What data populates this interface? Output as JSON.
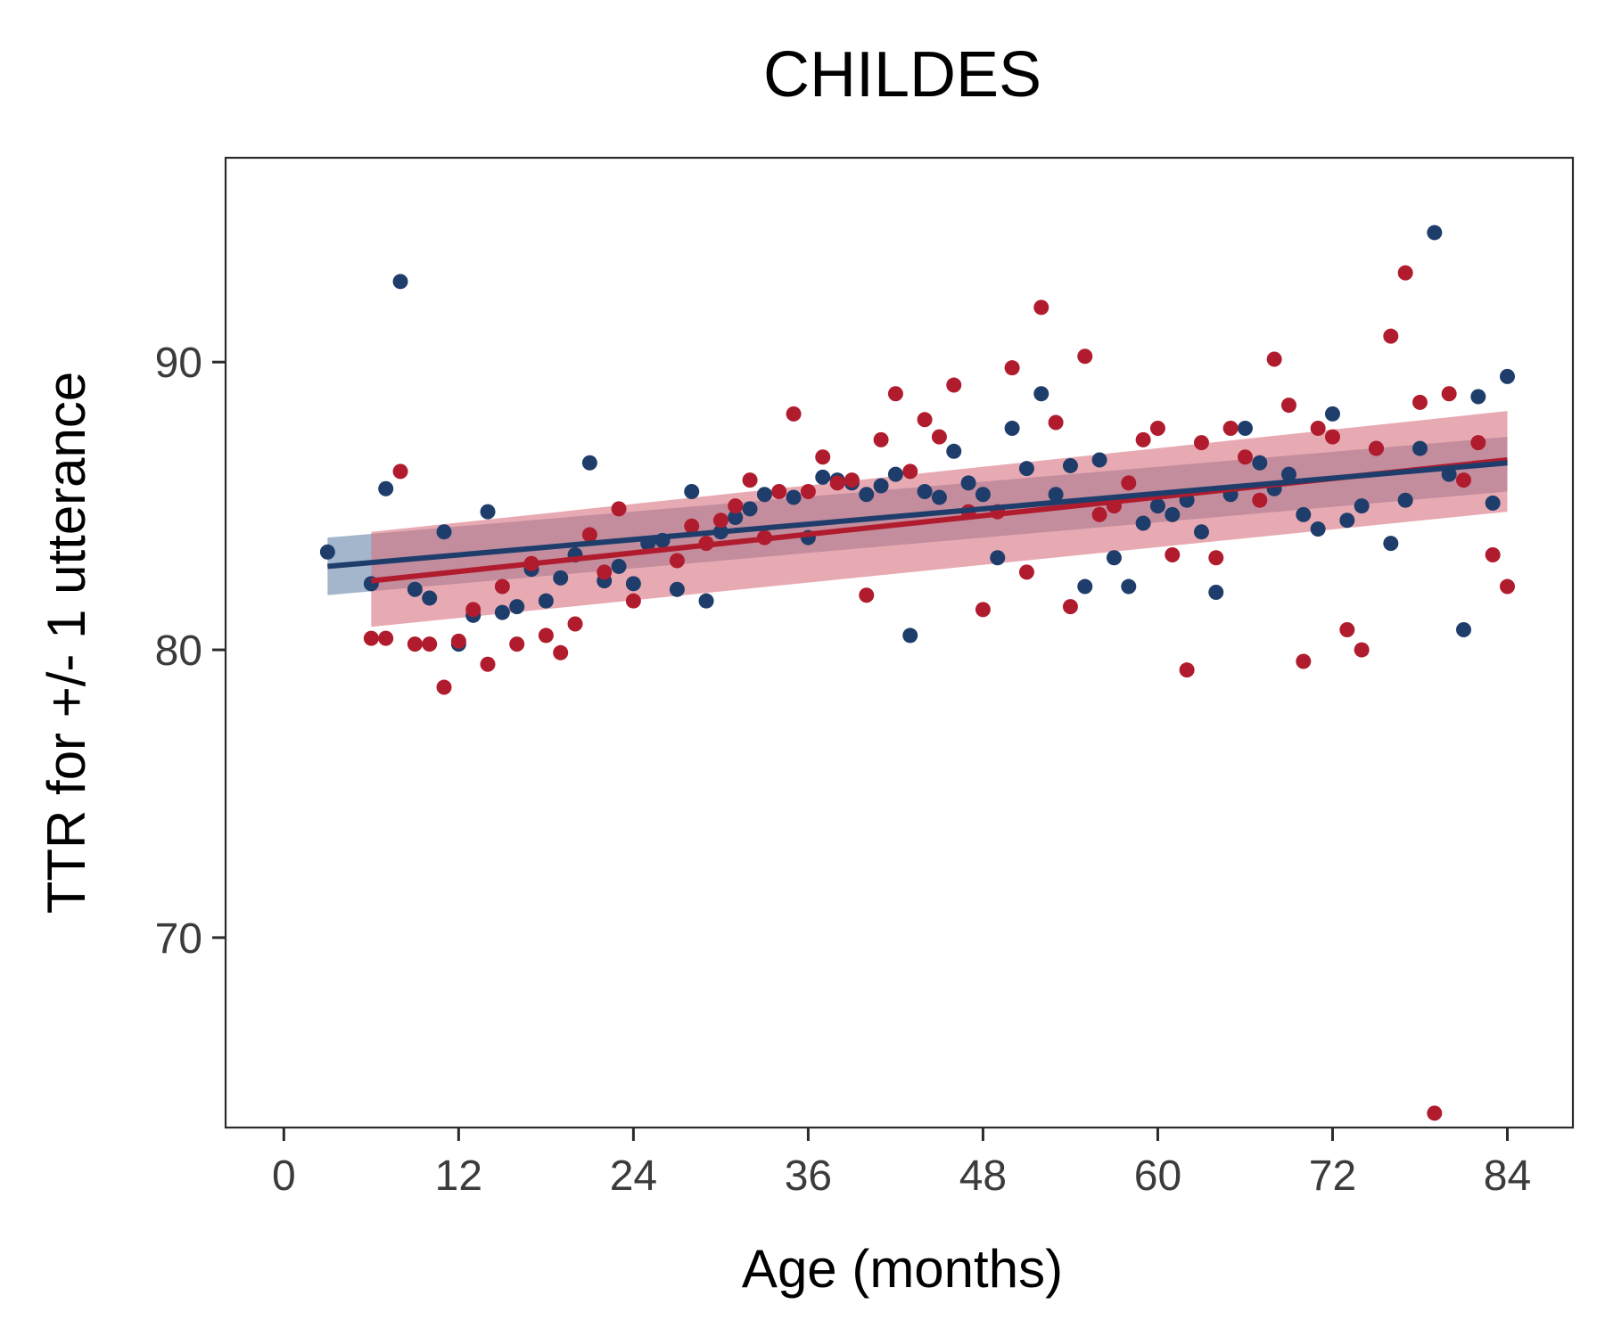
{
  "chart_data": {
    "type": "scatter",
    "title": "CHILDES",
    "xlabel": "Age (months)",
    "ylabel": "TTR for +/- 1 utterance",
    "xlim": [
      -4,
      88.5
    ],
    "ylim": [
      63.4,
      97.1
    ],
    "x_ticks": [
      0,
      12,
      24,
      36,
      48,
      60,
      72,
      84
    ],
    "y_ticks": [
      70,
      80,
      90
    ],
    "grid": false,
    "legend": "none",
    "series": [
      {
        "color": "#1f3d6b",
        "band_color": "#5a7aa3",
        "band_opacity": 0.55,
        "fit": {
          "x": [
            3,
            84
          ],
          "y": [
            82.9,
            86.5
          ],
          "ci_lower": [
            81.9,
            85.5
          ],
          "ci_upper": [
            83.9,
            87.4
          ]
        },
        "points": [
          [
            3,
            83.4
          ],
          [
            6,
            82.3
          ],
          [
            7,
            85.6
          ],
          [
            8,
            92.8
          ],
          [
            9,
            82.1
          ],
          [
            10,
            81.8
          ],
          [
            11,
            84.1
          ],
          [
            12,
            80.2
          ],
          [
            13,
            81.2
          ],
          [
            14,
            84.8
          ],
          [
            15,
            81.3
          ],
          [
            16,
            81.5
          ],
          [
            17,
            82.8
          ],
          [
            18,
            81.7
          ],
          [
            19,
            82.5
          ],
          [
            20,
            83.3
          ],
          [
            21,
            86.5
          ],
          [
            22,
            82.4
          ],
          [
            23,
            82.9
          ],
          [
            24,
            82.3
          ],
          [
            25,
            83.7
          ],
          [
            26,
            83.8
          ],
          [
            27,
            82.1
          ],
          [
            28,
            85.5
          ],
          [
            29,
            81.7
          ],
          [
            30,
            84.1
          ],
          [
            31,
            84.6
          ],
          [
            32,
            84.9
          ],
          [
            33,
            85.4
          ],
          [
            35,
            85.3
          ],
          [
            36,
            83.9
          ],
          [
            37,
            86.0
          ],
          [
            38,
            85.9
          ],
          [
            39,
            85.8
          ],
          [
            40,
            85.4
          ],
          [
            41,
            85.7
          ],
          [
            42,
            86.1
          ],
          [
            43,
            80.5
          ],
          [
            44,
            85.5
          ],
          [
            45,
            85.3
          ],
          [
            46,
            86.9
          ],
          [
            47,
            85.8
          ],
          [
            48,
            85.4
          ],
          [
            49,
            83.2
          ],
          [
            50,
            87.7
          ],
          [
            51,
            86.3
          ],
          [
            52,
            88.9
          ],
          [
            53,
            85.4
          ],
          [
            54,
            86.4
          ],
          [
            55,
            82.2
          ],
          [
            56,
            86.6
          ],
          [
            57,
            83.2
          ],
          [
            58,
            82.2
          ],
          [
            59,
            84.4
          ],
          [
            60,
            85.0
          ],
          [
            61,
            84.7
          ],
          [
            62,
            85.2
          ],
          [
            63,
            84.1
          ],
          [
            64,
            82.0
          ],
          [
            65,
            85.4
          ],
          [
            66,
            87.7
          ],
          [
            67,
            86.5
          ],
          [
            68,
            85.6
          ],
          [
            69,
            86.1
          ],
          [
            70,
            84.7
          ],
          [
            71,
            84.2
          ],
          [
            72,
            88.2
          ],
          [
            73,
            84.5
          ],
          [
            74,
            85.0
          ],
          [
            75,
            87.0
          ],
          [
            76,
            83.7
          ],
          [
            77,
            85.2
          ],
          [
            78,
            87.0
          ],
          [
            79,
            94.5
          ],
          [
            80,
            86.1
          ],
          [
            81,
            80.7
          ],
          [
            82,
            88.8
          ],
          [
            83,
            85.1
          ],
          [
            84,
            89.5
          ]
        ]
      },
      {
        "color": "#b01c2e",
        "band_color": "#d8727e",
        "band_opacity": 0.6,
        "fit": {
          "x": [
            6,
            84
          ],
          "y": [
            82.4,
            86.6
          ],
          "ci_lower": [
            80.8,
            84.8
          ],
          "ci_upper": [
            84.1,
            88.3
          ]
        },
        "points": [
          [
            6,
            80.4
          ],
          [
            7,
            80.4
          ],
          [
            8,
            86.2
          ],
          [
            9,
            80.2
          ],
          [
            10,
            80.2
          ],
          [
            11,
            78.7
          ],
          [
            12,
            80.3
          ],
          [
            13,
            81.4
          ],
          [
            14,
            79.5
          ],
          [
            15,
            82.2
          ],
          [
            16,
            80.2
          ],
          [
            17,
            83.0
          ],
          [
            18,
            80.5
          ],
          [
            19,
            79.9
          ],
          [
            20,
            80.9
          ],
          [
            21,
            84.0
          ],
          [
            22,
            82.7
          ],
          [
            23,
            84.9
          ],
          [
            24,
            81.7
          ],
          [
            27,
            83.1
          ],
          [
            28,
            84.3
          ],
          [
            29,
            83.7
          ],
          [
            30,
            84.5
          ],
          [
            31,
            85.0
          ],
          [
            32,
            85.9
          ],
          [
            33,
            83.9
          ],
          [
            34,
            85.5
          ],
          [
            35,
            88.2
          ],
          [
            36,
            85.5
          ],
          [
            37,
            86.7
          ],
          [
            38,
            85.8
          ],
          [
            39,
            85.9
          ],
          [
            40,
            81.9
          ],
          [
            41,
            87.3
          ],
          [
            42,
            88.9
          ],
          [
            43,
            86.2
          ],
          [
            44,
            88.0
          ],
          [
            45,
            87.4
          ],
          [
            46,
            89.2
          ],
          [
            47,
            84.8
          ],
          [
            48,
            81.4
          ],
          [
            49,
            84.8
          ],
          [
            50,
            89.8
          ],
          [
            51,
            82.7
          ],
          [
            52,
            91.9
          ],
          [
            53,
            87.9
          ],
          [
            54,
            81.5
          ],
          [
            55,
            90.2
          ],
          [
            56,
            84.7
          ],
          [
            57,
            85.0
          ],
          [
            58,
            85.8
          ],
          [
            59,
            87.3
          ],
          [
            60,
            87.7
          ],
          [
            61,
            83.3
          ],
          [
            62,
            79.3
          ],
          [
            63,
            87.2
          ],
          [
            64,
            83.2
          ],
          [
            65,
            87.7
          ],
          [
            66,
            86.7
          ],
          [
            67,
            85.2
          ],
          [
            68,
            90.1
          ],
          [
            69,
            88.5
          ],
          [
            70,
            79.6
          ],
          [
            71,
            87.7
          ],
          [
            72,
            87.4
          ],
          [
            73,
            80.7
          ],
          [
            74,
            80.0
          ],
          [
            75,
            87.0
          ],
          [
            76,
            90.9
          ],
          [
            77,
            93.1
          ],
          [
            78,
            88.6
          ],
          [
            79,
            63.9
          ],
          [
            80,
            88.9
          ],
          [
            81,
            85.9
          ],
          [
            82,
            87.2
          ],
          [
            83,
            83.3
          ],
          [
            84,
            82.2
          ]
        ]
      }
    ]
  }
}
